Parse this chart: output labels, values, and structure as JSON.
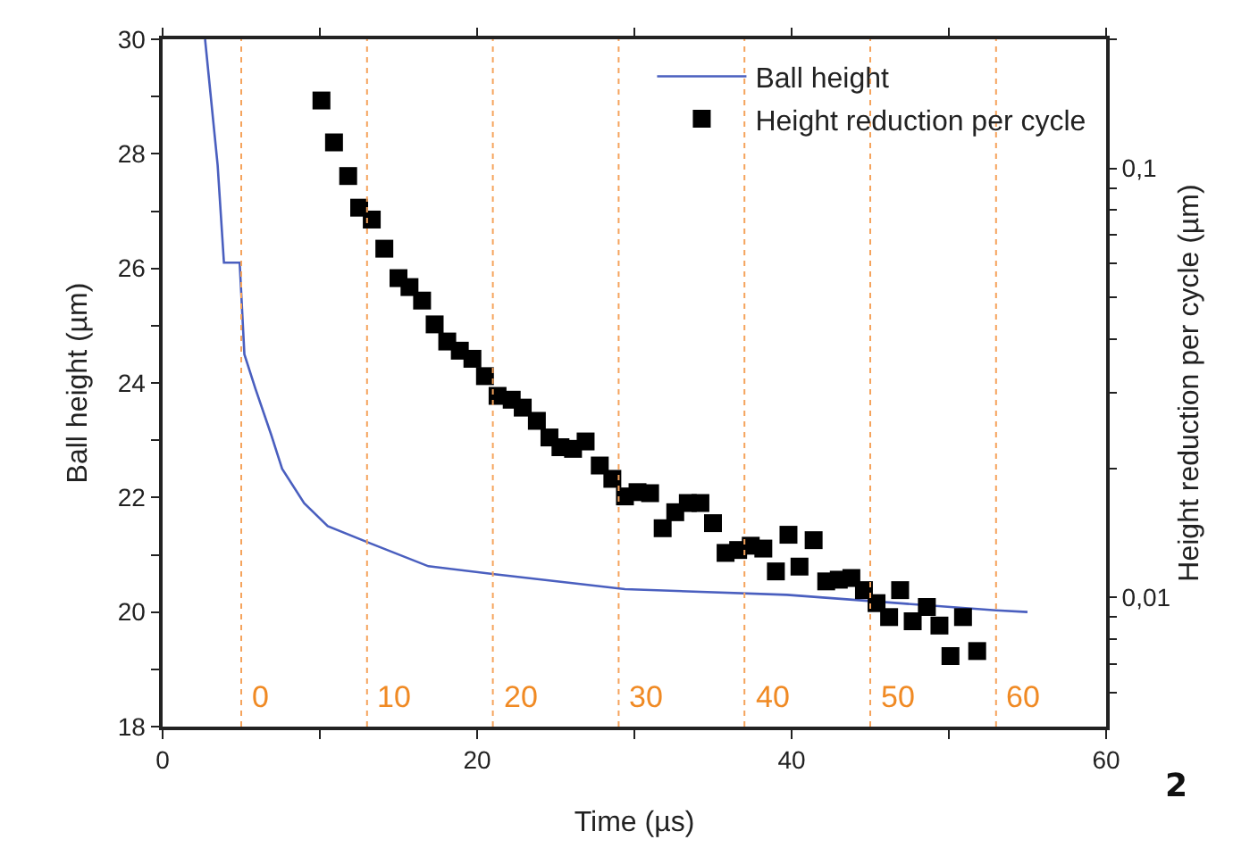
{
  "chart_data": {
    "type": "line",
    "xlabel": "Time (µs)",
    "ylabel": "Ball height (µm)",
    "y2label": "Height reduction per cycle (µm)",
    "xlim": [
      0,
      60
    ],
    "xticks": [
      0,
      {
        "value": 10,
        "label": null
      },
      20,
      {
        "value": 30,
        "label": null
      },
      40,
      {
        "value": 50,
        "label": null
      },
      60
    ],
    "ylim": [
      18,
      30
    ],
    "yticks": [
      18,
      {
        "value": 19,
        "label": null
      },
      20,
      {
        "value": 21,
        "label": null
      },
      22,
      {
        "value": 23,
        "label": null
      },
      24,
      {
        "value": 25,
        "label": null
      },
      26,
      {
        "value": 27,
        "label": null
      },
      28,
      {
        "value": 29,
        "label": null
      },
      30
    ],
    "y2lim": [
      0.005,
      0.2
    ],
    "y2ticks": [
      {
        "value": 0.006,
        "label": null
      },
      {
        "value": 0.007,
        "label": null
      },
      {
        "value": 0.008,
        "label": null
      },
      {
        "value": 0.009,
        "label": null
      },
      {
        "value": 0.01,
        "label": "0,01"
      },
      {
        "value": 0.02,
        "label": null
      },
      {
        "value": 0.03,
        "label": null
      },
      {
        "value": 0.04,
        "label": null
      },
      {
        "value": 0.05,
        "label": null
      },
      {
        "value": 0.06,
        "label": null
      },
      {
        "value": 0.07,
        "label": null
      },
      {
        "value": 0.08,
        "label": null
      },
      {
        "value": 0.09,
        "label": null
      },
      {
        "value": 0.1,
        "label": "0,1"
      },
      {
        "value": 0.2,
        "label": null
      }
    ],
    "log": "y2",
    "grid": false,
    "legend": "top right",
    "series": [
      {
        "name": "Ball height",
        "color": "#4a5fbf",
        "marker": "none",
        "line_style": "solid",
        "x": [
          2.7,
          3.5,
          3.9,
          4.9,
          5.2,
          5.9,
          6.9,
          7.6,
          9.0,
          10.5,
          13.2,
          16.9,
          21.1,
          29.4,
          39.7,
          53,
          55
        ],
        "values": [
          30,
          27.8,
          26.1,
          26.1,
          24.5,
          23.9,
          23.1,
          22.5,
          21.9,
          21.5,
          21.2,
          20.8,
          20.66,
          20.4,
          20.3,
          20.03,
          20.0
        ]
      },
      {
        "name": "Height reduction per cycle",
        "type": "scatter",
        "axis": "y2",
        "color": "#000000",
        "marker": "square",
        "x": [
          10.1,
          10.9,
          11.8,
          12.5,
          13.3,
          14.1,
          15.0,
          15.7,
          16.5,
          17.3,
          18.1,
          18.9,
          19.7,
          20.5,
          21.3,
          22.2,
          22.9,
          23.8,
          24.6,
          25.3,
          26.1,
          26.9,
          27.8,
          28.6,
          29.4,
          30.2,
          31.0,
          31.8,
          32.6,
          33.4,
          34.2,
          35.0,
          35.8,
          36.6,
          37.4,
          38.2,
          39.0,
          39.8,
          40.5,
          41.4,
          42.2,
          43.0,
          43.8,
          44.6,
          45.4,
          46.2,
          46.9,
          47.7,
          48.6,
          49.4,
          50.1,
          50.9,
          51.8
        ],
        "values": [
          0.144,
          0.115,
          0.096,
          0.081,
          0.076,
          0.065,
          0.0555,
          0.0529,
          0.0492,
          0.0433,
          0.0395,
          0.0376,
          0.036,
          0.0328,
          0.0295,
          0.0289,
          0.0277,
          0.0258,
          0.0236,
          0.0224,
          0.0222,
          0.0231,
          0.0203,
          0.0189,
          0.0172,
          0.0176,
          0.0175,
          0.0145,
          0.0158,
          0.0166,
          0.0166,
          0.0149,
          0.0127,
          0.0129,
          0.0132,
          0.013,
          0.0115,
          0.014,
          0.0118,
          0.0136,
          0.0109,
          0.011,
          0.0111,
          0.0104,
          0.0097,
          0.009,
          0.0104,
          0.0088,
          0.0095,
          0.0086,
          0.0073,
          0.009,
          0.0075
        ]
      }
    ],
    "ref_lines": [
      {
        "axis": "x",
        "value": 5,
        "color": "#f5a35c",
        "line_style": "dotted"
      },
      {
        "axis": "x",
        "value": 13,
        "color": "#f5a35c",
        "line_style": "dotted"
      },
      {
        "axis": "x",
        "value": 21,
        "color": "#f5a35c",
        "line_style": "dotted"
      },
      {
        "axis": "x",
        "value": 29,
        "color": "#f5a35c",
        "line_style": "dotted"
      },
      {
        "axis": "x",
        "value": 37,
        "color": "#f5a35c",
        "line_style": "dotted"
      },
      {
        "axis": "x",
        "value": 45,
        "color": "#f5a35c",
        "line_style": "dotted"
      },
      {
        "axis": "x",
        "value": 53,
        "color": "#f5a35c",
        "line_style": "dotted"
      }
    ],
    "annotations": [
      {
        "text": "0",
        "x": 5,
        "y": 18.5
      },
      {
        "text": "10",
        "x": 13,
        "y": 18.5
      },
      {
        "text": "20",
        "x": 21,
        "y": 18.5
      },
      {
        "text": "30",
        "x": 29,
        "y": 18.5
      },
      {
        "text": "40",
        "x": 37,
        "y": 18.5
      },
      {
        "text": "50",
        "x": 45,
        "y": 18.5
      },
      {
        "text": "60",
        "x": 53,
        "y": 18.5
      },
      "2"
    ]
  }
}
